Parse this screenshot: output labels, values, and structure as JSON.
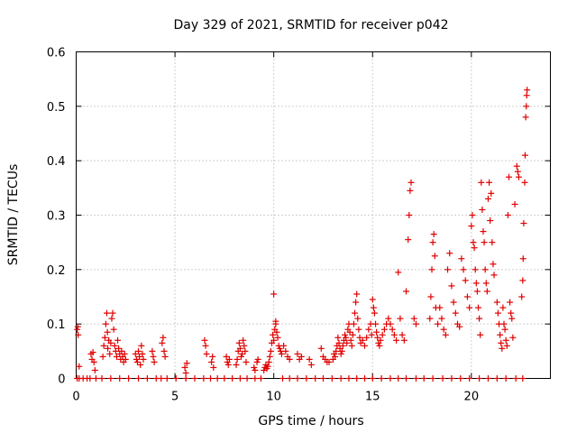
{
  "chart_data": {
    "type": "scatter",
    "title": "Day 329 of 2021, SRMTID for receiver p042",
    "xlabel": "GPS time / hours",
    "ylabel": "SRMTID / TECUs",
    "xlim": [
      0,
      24
    ],
    "ylim": [
      0,
      0.6
    ],
    "xticks": [
      0,
      5,
      10,
      15,
      20
    ],
    "xtick_labels": [
      "0",
      "5",
      "10",
      "15",
      "20"
    ],
    "yticks": [
      0,
      0.1,
      0.2,
      0.3,
      0.4,
      0.5,
      0.6
    ],
    "ytick_labels": [
      "0",
      "0.1",
      "0.2",
      "0.3",
      "0.4",
      "0.5",
      "0.6"
    ],
    "grid": true,
    "marker": "+",
    "marker_color": "#e00000",
    "series": [
      {
        "name": "SRMTID",
        "points": [
          [
            0.05,
            0.09
          ],
          [
            0.08,
            0.095
          ],
          [
            0.1,
            0.08
          ],
          [
            0.15,
            0.022
          ],
          [
            0.75,
            0.045
          ],
          [
            0.8,
            0.035
          ],
          [
            0.85,
            0.048
          ],
          [
            0.9,
            0.03
          ],
          [
            0.95,
            0.015
          ],
          [
            1.35,
            0.04
          ],
          [
            1.4,
            0.06
          ],
          [
            1.45,
            0.075
          ],
          [
            1.5,
            0.1
          ],
          [
            1.55,
            0.12
          ],
          [
            1.58,
            0.085
          ],
          [
            1.6,
            0.055
          ],
          [
            1.65,
            0.07
          ],
          [
            1.7,
            0.045
          ],
          [
            1.75,
            0.065
          ],
          [
            1.8,
            0.11
          ],
          [
            1.85,
            0.12
          ],
          [
            1.9,
            0.09
          ],
          [
            1.95,
            0.06
          ],
          [
            2.0,
            0.05
          ],
          [
            2.05,
            0.04
          ],
          [
            2.1,
            0.07
          ],
          [
            2.15,
            0.055
          ],
          [
            2.2,
            0.045
          ],
          [
            2.25,
            0.035
          ],
          [
            2.3,
            0.05
          ],
          [
            2.35,
            0.04
          ],
          [
            2.4,
            0.03
          ],
          [
            2.45,
            0.045
          ],
          [
            2.5,
            0.035
          ],
          [
            3.0,
            0.045
          ],
          [
            3.05,
            0.035
          ],
          [
            3.1,
            0.03
          ],
          [
            3.15,
            0.05
          ],
          [
            3.2,
            0.04
          ],
          [
            3.25,
            0.025
          ],
          [
            3.3,
            0.06
          ],
          [
            3.35,
            0.045
          ],
          [
            3.4,
            0.035
          ],
          [
            3.85,
            0.05
          ],
          [
            3.9,
            0.04
          ],
          [
            3.95,
            0.03
          ],
          [
            4.35,
            0.065
          ],
          [
            4.4,
            0.075
          ],
          [
            4.45,
            0.05
          ],
          [
            4.5,
            0.04
          ],
          [
            5.5,
            0.02
          ],
          [
            5.55,
            0.01
          ],
          [
            5.6,
            0.028
          ],
          [
            6.5,
            0.07
          ],
          [
            6.55,
            0.06
          ],
          [
            6.6,
            0.045
          ],
          [
            6.85,
            0.03
          ],
          [
            6.9,
            0.04
          ],
          [
            6.95,
            0.02
          ],
          [
            7.6,
            0.04
          ],
          [
            7.65,
            0.03
          ],
          [
            7.7,
            0.025
          ],
          [
            7.75,
            0.035
          ],
          [
            8.1,
            0.025
          ],
          [
            8.15,
            0.035
          ],
          [
            8.2,
            0.05
          ],
          [
            8.25,
            0.065
          ],
          [
            8.3,
            0.055
          ],
          [
            8.35,
            0.04
          ],
          [
            8.4,
            0.045
          ],
          [
            8.45,
            0.07
          ],
          [
            8.5,
            0.06
          ],
          [
            8.55,
            0.05
          ],
          [
            8.6,
            0.03
          ],
          [
            9.0,
            0.02
          ],
          [
            9.05,
            0.015
          ],
          [
            9.15,
            0.03
          ],
          [
            9.2,
            0.035
          ],
          [
            9.5,
            0.015
          ],
          [
            9.55,
            0.02
          ],
          [
            9.6,
            0.025
          ],
          [
            9.65,
            0.018
          ],
          [
            9.7,
            0.022
          ],
          [
            9.75,
            0.03
          ],
          [
            9.8,
            0.04
          ],
          [
            9.85,
            0.05
          ],
          [
            9.9,
            0.065
          ],
          [
            9.95,
            0.08
          ],
          [
            10.0,
            0.07
          ],
          [
            10.05,
            0.09
          ],
          [
            10.1,
            0.1
          ],
          [
            10.15,
            0.085
          ],
          [
            10.2,
            0.075
          ],
          [
            10.25,
            0.06
          ],
          [
            10.3,
            0.055
          ],
          [
            10.35,
            0.05
          ],
          [
            10.4,
            0.045
          ],
          [
            10.5,
            0.06
          ],
          [
            10.6,
            0.05
          ],
          [
            10.7,
            0.04
          ],
          [
            10.8,
            0.035
          ],
          [
            10.0,
            0.155
          ],
          [
            10.1,
            0.105
          ],
          [
            11.2,
            0.045
          ],
          [
            11.3,
            0.035
          ],
          [
            11.4,
            0.04
          ],
          [
            11.8,
            0.035
          ],
          [
            11.9,
            0.025
          ],
          [
            12.4,
            0.055
          ],
          [
            12.5,
            0.04
          ],
          [
            12.6,
            0.035
          ],
          [
            12.7,
            0.03
          ],
          [
            12.8,
            0.03
          ],
          [
            13.0,
            0.035
          ],
          [
            13.05,
            0.045
          ],
          [
            13.1,
            0.04
          ],
          [
            13.15,
            0.05
          ],
          [
            13.2,
            0.06
          ],
          [
            13.25,
            0.075
          ],
          [
            13.3,
            0.065
          ],
          [
            13.35,
            0.055
          ],
          [
            13.4,
            0.045
          ],
          [
            13.45,
            0.05
          ],
          [
            13.5,
            0.06
          ],
          [
            13.55,
            0.07
          ],
          [
            13.6,
            0.08
          ],
          [
            13.65,
            0.075
          ],
          [
            13.7,
            0.065
          ],
          [
            13.75,
            0.09
          ],
          [
            13.8,
            0.1
          ],
          [
            13.85,
            0.085
          ],
          [
            13.9,
            0.07
          ],
          [
            13.95,
            0.06
          ],
          [
            14.0,
            0.08
          ],
          [
            14.05,
            0.1
          ],
          [
            14.1,
            0.12
          ],
          [
            14.15,
            0.14
          ],
          [
            14.2,
            0.155
          ],
          [
            14.25,
            0.11
          ],
          [
            14.3,
            0.09
          ],
          [
            14.35,
            0.075
          ],
          [
            14.4,
            0.065
          ],
          [
            14.5,
            0.07
          ],
          [
            14.6,
            0.06
          ],
          [
            14.7,
            0.075
          ],
          [
            14.8,
            0.09
          ],
          [
            14.9,
            0.1
          ],
          [
            14.95,
            0.08
          ],
          [
            15.0,
            0.145
          ],
          [
            15.05,
            0.13
          ],
          [
            15.1,
            0.12
          ],
          [
            15.15,
            0.1
          ],
          [
            15.2,
            0.085
          ],
          [
            15.25,
            0.075
          ],
          [
            15.3,
            0.065
          ],
          [
            15.35,
            0.06
          ],
          [
            15.4,
            0.07
          ],
          [
            15.5,
            0.08
          ],
          [
            15.6,
            0.09
          ],
          [
            15.7,
            0.1
          ],
          [
            15.8,
            0.11
          ],
          [
            15.9,
            0.1
          ],
          [
            16.0,
            0.09
          ],
          [
            16.1,
            0.08
          ],
          [
            16.2,
            0.07
          ],
          [
            16.3,
            0.195
          ],
          [
            16.4,
            0.11
          ],
          [
            16.5,
            0.08
          ],
          [
            16.6,
            0.07
          ],
          [
            16.7,
            0.16
          ],
          [
            16.8,
            0.255
          ],
          [
            16.85,
            0.3
          ],
          [
            16.9,
            0.345
          ],
          [
            16.95,
            0.36
          ],
          [
            17.1,
            0.11
          ],
          [
            17.2,
            0.1
          ],
          [
            17.9,
            0.11
          ],
          [
            17.95,
            0.15
          ],
          [
            18.0,
            0.2
          ],
          [
            18.05,
            0.25
          ],
          [
            18.1,
            0.265
          ],
          [
            18.15,
            0.225
          ],
          [
            18.2,
            0.13
          ],
          [
            18.3,
            0.1
          ],
          [
            18.4,
            0.13
          ],
          [
            18.5,
            0.11
          ],
          [
            18.6,
            0.09
          ],
          [
            18.7,
            0.08
          ],
          [
            18.8,
            0.2
          ],
          [
            18.9,
            0.23
          ],
          [
            19.0,
            0.17
          ],
          [
            19.1,
            0.14
          ],
          [
            19.2,
            0.12
          ],
          [
            19.3,
            0.1
          ],
          [
            19.4,
            0.095
          ],
          [
            19.5,
            0.22
          ],
          [
            19.6,
            0.2
          ],
          [
            19.7,
            0.18
          ],
          [
            19.8,
            0.15
          ],
          [
            19.9,
            0.13
          ],
          [
            20.0,
            0.28
          ],
          [
            20.05,
            0.3
          ],
          [
            20.1,
            0.25
          ],
          [
            20.15,
            0.24
          ],
          [
            20.2,
            0.2
          ],
          [
            20.25,
            0.175
          ],
          [
            20.3,
            0.16
          ],
          [
            20.35,
            0.13
          ],
          [
            20.4,
            0.11
          ],
          [
            20.45,
            0.08
          ],
          [
            20.5,
            0.36
          ],
          [
            20.55,
            0.31
          ],
          [
            20.6,
            0.27
          ],
          [
            20.65,
            0.25
          ],
          [
            20.7,
            0.2
          ],
          [
            20.75,
            0.175
          ],
          [
            20.8,
            0.16
          ],
          [
            20.85,
            0.33
          ],
          [
            20.9,
            0.36
          ],
          [
            20.95,
            0.29
          ],
          [
            21.0,
            0.34
          ],
          [
            21.05,
            0.25
          ],
          [
            21.1,
            0.21
          ],
          [
            21.15,
            0.19
          ],
          [
            21.3,
            0.14
          ],
          [
            21.35,
            0.12
          ],
          [
            21.4,
            0.1
          ],
          [
            21.45,
            0.08
          ],
          [
            21.5,
            0.065
          ],
          [
            21.55,
            0.055
          ],
          [
            21.6,
            0.13
          ],
          [
            21.65,
            0.1
          ],
          [
            21.7,
            0.09
          ],
          [
            21.75,
            0.07
          ],
          [
            21.8,
            0.06
          ],
          [
            21.85,
            0.3
          ],
          [
            21.9,
            0.37
          ],
          [
            21.95,
            0.14
          ],
          [
            22.0,
            0.12
          ],
          [
            22.05,
            0.11
          ],
          [
            22.1,
            0.075
          ],
          [
            22.2,
            0.32
          ],
          [
            22.3,
            0.39
          ],
          [
            22.35,
            0.38
          ],
          [
            22.4,
            0.37
          ],
          [
            22.55,
            0.15
          ],
          [
            22.6,
            0.18
          ],
          [
            22.62,
            0.22
          ],
          [
            22.65,
            0.285
          ],
          [
            22.7,
            0.36
          ],
          [
            22.72,
            0.41
          ],
          [
            22.75,
            0.48
          ],
          [
            22.78,
            0.5
          ],
          [
            22.8,
            0.52
          ],
          [
            22.82,
            0.53
          ]
        ],
        "zero_marks_x": [
          0.05,
          0.15,
          0.35,
          0.55,
          0.7,
          1.0,
          1.3,
          1.75,
          2.2,
          2.65,
          3.15,
          3.6,
          4.05,
          4.3,
          4.6,
          5.05,
          5.55,
          6.0,
          6.45,
          6.8,
          7.15,
          7.5,
          7.9,
          8.3,
          8.65,
          9.05,
          9.35,
          10.45,
          10.8,
          11.2,
          11.65,
          12.1,
          12.5,
          12.95,
          13.4,
          13.8,
          14.2,
          14.6,
          15.0,
          15.45,
          15.9,
          16.3,
          16.7,
          17.2,
          17.6,
          18.05,
          18.55,
          19.0,
          19.45,
          19.9,
          20.4,
          20.85,
          21.3,
          21.75,
          22.25,
          22.6
        ]
      }
    ]
  }
}
